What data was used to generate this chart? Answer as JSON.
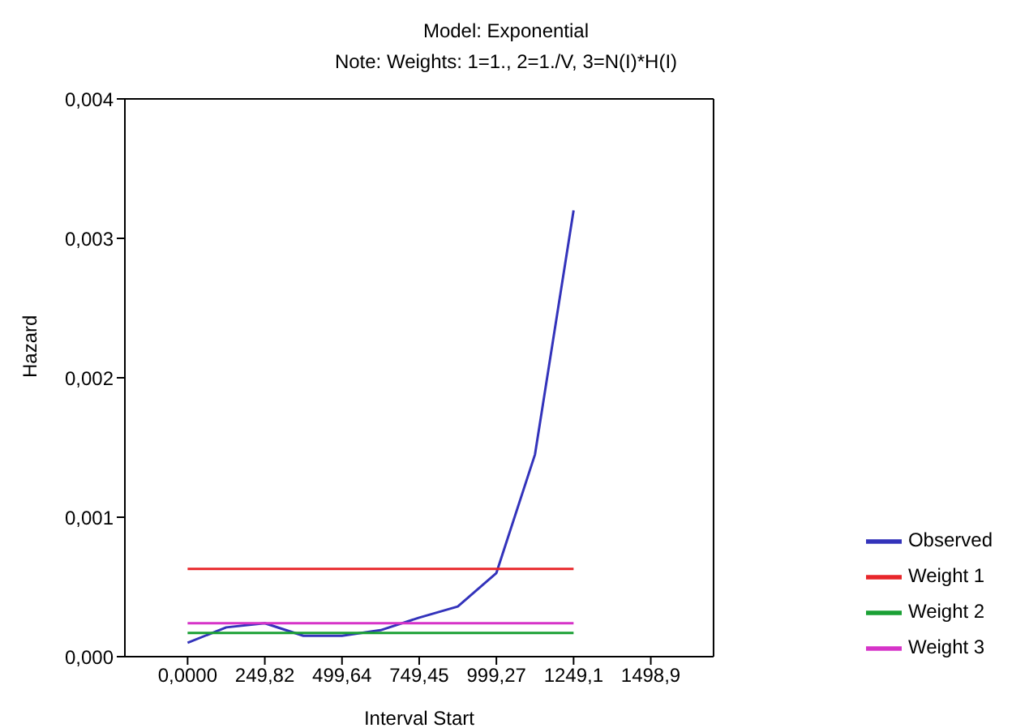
{
  "chart_data": {
    "type": "line",
    "title": "Model: Exponential",
    "subtitle": "Note: Weights: 1=1., 2=1./V, 3=N(I)*H(I)",
    "xlabel": "Interval Start",
    "ylabel": "Hazard",
    "xlim": [
      -203,
      1702
    ],
    "ylim": [
      0,
      0.004
    ],
    "xticks": [
      {
        "value": 0,
        "label": "0,0000"
      },
      {
        "value": 249.82,
        "label": "249,82"
      },
      {
        "value": 499.64,
        "label": "499,64"
      },
      {
        "value": 749.45,
        "label": "749,45"
      },
      {
        "value": 999.27,
        "label": "999,27"
      },
      {
        "value": 1249.1,
        "label": "1249,1"
      },
      {
        "value": 1498.9,
        "label": "1498,9"
      }
    ],
    "yticks": [
      {
        "value": 0,
        "label": "0,000"
      },
      {
        "value": 0.001,
        "label": "0,001"
      },
      {
        "value": 0.002,
        "label": "0,002"
      },
      {
        "value": 0.003,
        "label": "0,003"
      },
      {
        "value": 0.004,
        "label": "0,004"
      }
    ],
    "series": [
      {
        "name": "Observed",
        "color": "#3333bb",
        "x": [
          0,
          124.91,
          249.82,
          374.73,
          499.64,
          624.55,
          749.45,
          874.36,
          999.27,
          1124.18,
          1249.1
        ],
        "values": [
          0.0001,
          0.00021,
          0.00024,
          0.00015,
          0.00015,
          0.00019,
          0.00028,
          0.00036,
          0.0006,
          0.00145,
          0.0032
        ]
      },
      {
        "name": "Weight 1",
        "color": "#e8262a",
        "x": [
          0,
          1249.1
        ],
        "values": [
          0.00063,
          0.00063
        ]
      },
      {
        "name": "Weight 2",
        "color": "#1aa034",
        "x": [
          0,
          1249.1
        ],
        "values": [
          0.00017,
          0.00017
        ]
      },
      {
        "name": "Weight 3",
        "color": "#d633c8",
        "x": [
          0,
          1249.1
        ],
        "values": [
          0.00024,
          0.00024
        ]
      }
    ],
    "grid": false,
    "legend": "right",
    "marker": "none",
    "line_style": "solid"
  }
}
